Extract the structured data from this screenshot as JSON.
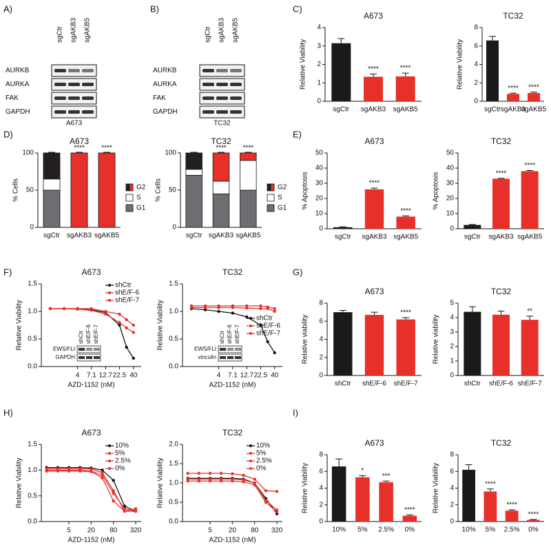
{
  "panel_labels": [
    "A)",
    "B)",
    "C)",
    "D)",
    "E)",
    "F)",
    "G)",
    "H)",
    "I)"
  ],
  "blots": [
    {
      "lanes": [
        "sgCtr",
        "sgAKB3",
        "sgAKB5"
      ],
      "rows": [
        "AURKB",
        "AURKA",
        "FAK",
        "GAPDH"
      ],
      "caption": "A673"
    },
    {
      "lanes": [
        "sgCtr",
        "sgAKB3",
        "sgAKB5"
      ],
      "rows": [
        "AURKB",
        "AURKA",
        "FAK",
        "GAPDH"
      ],
      "caption": "TC32"
    }
  ],
  "chart_data": [
    {
      "type": "bar",
      "title": "A673",
      "ylabel": "Relative Viability",
      "categories": [
        "sgCtr",
        "sgAKB3",
        "sgAKB5"
      ],
      "values": [
        3.15,
        1.33,
        1.35
      ],
      "errors": [
        0.25,
        0.15,
        0.18
      ],
      "colors": [
        "#1a1a1a",
        "#e8302a",
        "#e8302a"
      ],
      "annotations": [
        null,
        "****",
        "****"
      ],
      "ylim": [
        0,
        4
      ],
      "yticks": [
        0,
        1,
        2,
        3,
        4
      ]
    },
    {
      "type": "bar",
      "title": "TC32",
      "ylabel": "Relative Viability",
      "categories": [
        "sgCtr",
        "sgAKB3",
        "sgAKB5"
      ],
      "values": [
        6.6,
        0.8,
        0.9
      ],
      "errors": [
        0.45,
        0.08,
        0.1
      ],
      "colors": [
        "#1a1a1a",
        "#e8302a",
        "#e8302a"
      ],
      "annotations": [
        null,
        "****",
        "****"
      ],
      "ylim": [
        0,
        8
      ],
      "yticks": [
        0,
        2,
        4,
        6,
        8
      ]
    },
    {
      "type": "stacked_bar",
      "title": "A673",
      "ylabel": "% Cells",
      "categories": [
        "sgCtr",
        "sgAKB3",
        "sgAKB5"
      ],
      "series": [
        {
          "name": "G1",
          "color": "#6d6e71",
          "values": [
            50,
            0,
            0
          ]
        },
        {
          "name": "S",
          "color": "#ffffff",
          "values": [
            15,
            0,
            0
          ]
        },
        {
          "name": "G2",
          "color": "#231f20",
          "colors": [
            "#231f20",
            "#e8302a",
            "#e8302a"
          ],
          "values": [
            35,
            100,
            100
          ]
        }
      ],
      "annotations": [
        null,
        "****",
        "****"
      ],
      "ylim": [
        0,
        100
      ],
      "yticks": [
        0,
        50,
        100
      ]
    },
    {
      "type": "stacked_bar",
      "title": "TC32",
      "ylabel": "% Cells",
      "categories": [
        "sgCtr",
        "sgAKB3",
        "sgAKB5"
      ],
      "series": [
        {
          "name": "G1",
          "color": "#6d6e71",
          "values": [
            70,
            45,
            50
          ]
        },
        {
          "name": "S",
          "color": "#ffffff",
          "values": [
            8,
            17,
            40
          ]
        },
        {
          "name": "G2",
          "color": "#231f20",
          "colors": [
            "#231f20",
            "#e8302a",
            "#e8302a"
          ],
          "values": [
            22,
            38,
            10
          ]
        }
      ],
      "annotations": [
        null,
        "****",
        "****"
      ],
      "ylim": [
        0,
        100
      ],
      "yticks": [
        0,
        50,
        100
      ]
    },
    {
      "type": "bar",
      "title": "A673",
      "ylabel": "% Apoptosis",
      "categories": [
        "sgCtr",
        "sgAKB3",
        "sgAKB5"
      ],
      "values": [
        1,
        26,
        8
      ],
      "errors": [
        0.3,
        0.8,
        0.5
      ],
      "colors": [
        "#1a1a1a",
        "#e8302a",
        "#e8302a"
      ],
      "annotations": [
        null,
        "****",
        "****"
      ],
      "ylim": [
        0,
        50
      ],
      "yticks": [
        0,
        10,
        20,
        30,
        40,
        50
      ]
    },
    {
      "type": "bar",
      "title": "TC32",
      "ylabel": "% Apoptosis",
      "categories": [
        "sgCtr",
        "sgAKB3",
        "sgAKB5"
      ],
      "values": [
        2.5,
        33,
        38
      ],
      "errors": [
        0.3,
        0.3,
        0.4
      ],
      "colors": [
        "#1a1a1a",
        "#e8302a",
        "#e8302a"
      ],
      "annotations": [
        null,
        "****",
        "****"
      ],
      "ylim": [
        0,
        50
      ],
      "yticks": [
        0,
        10,
        20,
        30,
        40,
        50
      ]
    },
    {
      "type": "line",
      "title": "A673",
      "ylabel": "Relative Viability",
      "xlabel": "AZD-1152 (nM)",
      "xscale": "log",
      "x": [
        1.3,
        2.3,
        4,
        7.1,
        12.7,
        22.5,
        30,
        40
      ],
      "xlim": [
        0.9,
        55
      ],
      "xticks": [
        4,
        7.1,
        12.7,
        22.5,
        40
      ],
      "ylim": [
        0,
        1.5
      ],
      "yticks": [
        {
          "value": 0,
          "label": "0.0"
        },
        {
          "value": 0.5,
          "label": "0.5"
        },
        {
          "value": 1,
          "label": "1.0"
        },
        {
          "value": 1.5,
          "label": "1.5"
        }
      ],
      "legend": "upper right",
      "series": [
        {
          "name": "shCtr",
          "color": "#111111",
          "values": [
            1.05,
            1.05,
            1.05,
            1.03,
            0.98,
            0.75,
            0.35,
            0.15
          ]
        },
        {
          "name": "shE/F-6",
          "color": "#e8302a",
          "values": [
            1.05,
            1.05,
            1.05,
            1.05,
            1.0,
            0.95,
            0.85,
            0.75
          ]
        },
        {
          "name": "shE/F-7",
          "color": "#e8302a",
          "values": [
            1.05,
            1.05,
            1.04,
            1.02,
            0.95,
            0.8,
            0.7,
            0.62
          ]
        }
      ],
      "inset_blot": {
        "lanes": [
          "shCtr",
          "shE/F-6",
          "shE/F-7"
        ],
        "rows": [
          "EWS/FLI",
          "GAPDH"
        ]
      }
    },
    {
      "type": "line",
      "title": "TC32",
      "ylabel": "Relative Viability",
      "xlabel": "AZD-1152 (nM)",
      "xscale": "log",
      "x": [
        1.3,
        2.3,
        4,
        7.1,
        12.7,
        22.5,
        30,
        40
      ],
      "xlim": [
        0.9,
        55
      ],
      "xticks": [
        4,
        7.1,
        12.7,
        22.5,
        40
      ],
      "ylim": [
        0,
        1.5
      ],
      "yticks": [
        {
          "value": 0,
          "label": "0.0"
        },
        {
          "value": 0.5,
          "label": "0.5"
        },
        {
          "value": 1,
          "label": "1.0"
        },
        {
          "value": 1.5,
          "label": "1.5"
        }
      ],
      "legend": "center right",
      "series": [
        {
          "name": "shCtr",
          "color": "#111111",
          "values": [
            1.05,
            1.03,
            1.0,
            0.97,
            0.9,
            0.75,
            0.45,
            0.25
          ]
        },
        {
          "name": "shE/F-6",
          "color": "#e8302a",
          "values": [
            1.1,
            1.1,
            1.1,
            1.1,
            1.1,
            1.1,
            1.08,
            1.05
          ]
        },
        {
          "name": "shE/F-7",
          "color": "#e8302a",
          "values": [
            1.07,
            1.07,
            1.07,
            1.07,
            1.06,
            1.05,
            1.05,
            1.0
          ]
        }
      ],
      "inset_blot": {
        "lanes": [
          "shCtr",
          "shE/F-6",
          "shE/F-7"
        ],
        "rows": [
          "EWS/FLI",
          "vinculin"
        ]
      }
    },
    {
      "type": "bar",
      "title": "A673",
      "ylabel": "Relative viability",
      "categories": [
        "shCtr",
        "shE/F-6",
        "shE/F-7"
      ],
      "values": [
        7.0,
        6.7,
        6.2
      ],
      "errors": [
        0.2,
        0.3,
        0.2
      ],
      "colors": [
        "#1a1a1a",
        "#e8302a",
        "#e8302a"
      ],
      "annotations": [
        null,
        null,
        "****"
      ],
      "ylim": [
        0,
        8
      ],
      "yticks": [
        0,
        2,
        4,
        6,
        8
      ]
    },
    {
      "type": "bar",
      "title": "TC32",
      "ylabel": "Relative viability",
      "categories": [
        "shCtr",
        "shE/F-6",
        "shE/F-7"
      ],
      "values": [
        4.4,
        4.2,
        3.85
      ],
      "errors": [
        0.35,
        0.25,
        0.25
      ],
      "colors": [
        "#1a1a1a",
        "#e8302a",
        "#e8302a"
      ],
      "annotations": [
        null,
        null,
        "**"
      ],
      "ylim": [
        0,
        5
      ],
      "yticks": [
        0,
        1,
        2,
        3,
        4,
        5
      ]
    },
    {
      "type": "line",
      "title": "A673",
      "ylabel": "Relative Viability",
      "xlabel": "AZD-1152 (nM)",
      "xscale": "log",
      "x": [
        1.25,
        2.5,
        5,
        10,
        20,
        40,
        80,
        160,
        320
      ],
      "xlim": [
        0.9,
        450
      ],
      "xticks": [
        5,
        20,
        80,
        320
      ],
      "ylim": [
        0,
        1.5
      ],
      "yticks": [
        {
          "value": 0,
          "label": "0.0"
        },
        {
          "value": 0.5,
          "label": "0.5"
        },
        {
          "value": 1,
          "label": "1.0"
        },
        {
          "value": 1.5,
          "label": "1.5"
        }
      ],
      "legend": "upper right",
      "series": [
        {
          "name": "10%",
          "color": "#111111",
          "values": [
            1.05,
            1.05,
            1.05,
            1.05,
            1.04,
            1.0,
            0.8,
            0.3,
            0.2
          ]
        },
        {
          "name": "5%",
          "color": "#e8302a",
          "values": [
            1.03,
            1.03,
            1.03,
            1.03,
            1.02,
            0.95,
            0.6,
            0.2,
            0.25
          ]
        },
        {
          "name": "2.5%",
          "color": "#e8302a",
          "values": [
            1.0,
            1.0,
            1.0,
            1.0,
            0.98,
            0.9,
            0.55,
            0.25,
            0.2
          ]
        },
        {
          "name": "0%",
          "color": "#e8302a",
          "values": [
            0.98,
            0.98,
            0.98,
            0.98,
            0.97,
            0.85,
            0.4,
            0.2,
            0.2
          ]
        }
      ]
    },
    {
      "type": "line",
      "title": "TC32",
      "ylabel": "Relative Viability",
      "xlabel": "AZD-1152 (nM)",
      "xscale": "log",
      "x": [
        1.25,
        2.5,
        5,
        10,
        20,
        40,
        80,
        160,
        320
      ],
      "xlim": [
        0.9,
        450
      ],
      "xticks": [
        5,
        20,
        80,
        320
      ],
      "ylim": [
        0,
        2
      ],
      "yticks": [
        {
          "value": 0,
          "label": "0.0"
        },
        {
          "value": 0.5,
          "label": "0.5"
        },
        {
          "value": 1,
          "label": "1.0"
        },
        {
          "value": 1.5,
          "label": "1.5"
        },
        {
          "value": 2,
          "label": "2.0"
        }
      ],
      "legend": "upper right",
      "series": [
        {
          "name": "10%",
          "color": "#111111",
          "values": [
            1.12,
            1.12,
            1.12,
            1.12,
            1.12,
            1.1,
            1.0,
            0.6,
            0.2
          ]
        },
        {
          "name": "5%",
          "color": "#e8302a",
          "values": [
            1.25,
            1.25,
            1.25,
            1.25,
            1.24,
            1.2,
            1.1,
            0.8,
            0.78
          ]
        },
        {
          "name": "2.5%",
          "color": "#e8302a",
          "values": [
            1.1,
            1.1,
            1.1,
            1.1,
            1.1,
            1.08,
            1.0,
            0.55,
            0.3
          ]
        },
        {
          "name": "0%",
          "color": "#e8302a",
          "values": [
            1.05,
            1.05,
            1.05,
            1.05,
            1.05,
            1.03,
            0.95,
            0.5,
            0.25
          ]
        }
      ]
    },
    {
      "type": "bar",
      "title": "A673",
      "ylabel": "Relative Viability",
      "categories": [
        "10%",
        "5%",
        "2.5%",
        "0%"
      ],
      "values": [
        6.6,
        5.3,
        4.7,
        0.7
      ],
      "errors": [
        0.9,
        0.2,
        0.15,
        0.1
      ],
      "colors": [
        "#1a1a1a",
        "#e8302a",
        "#e8302a",
        "#e8302a"
      ],
      "annotations": [
        null,
        "*",
        "***",
        "****"
      ],
      "ylim": [
        0,
        8
      ],
      "yticks": [
        0,
        2,
        4,
        6,
        8
      ]
    },
    {
      "type": "bar",
      "title": "TC32",
      "ylabel": "Relative Viability",
      "categories": [
        "10%",
        "5%",
        "2.5%",
        "0%"
      ],
      "values": [
        6.2,
        3.6,
        1.3,
        0.2
      ],
      "errors": [
        0.6,
        0.3,
        0.1,
        0.05
      ],
      "colors": [
        "#1a1a1a",
        "#e8302a",
        "#e8302a",
        "#e8302a"
      ],
      "annotations": [
        null,
        "****",
        "****",
        "****"
      ],
      "ylim": [
        0,
        8
      ],
      "yticks": [
        0,
        2,
        4,
        6,
        8
      ]
    }
  ]
}
